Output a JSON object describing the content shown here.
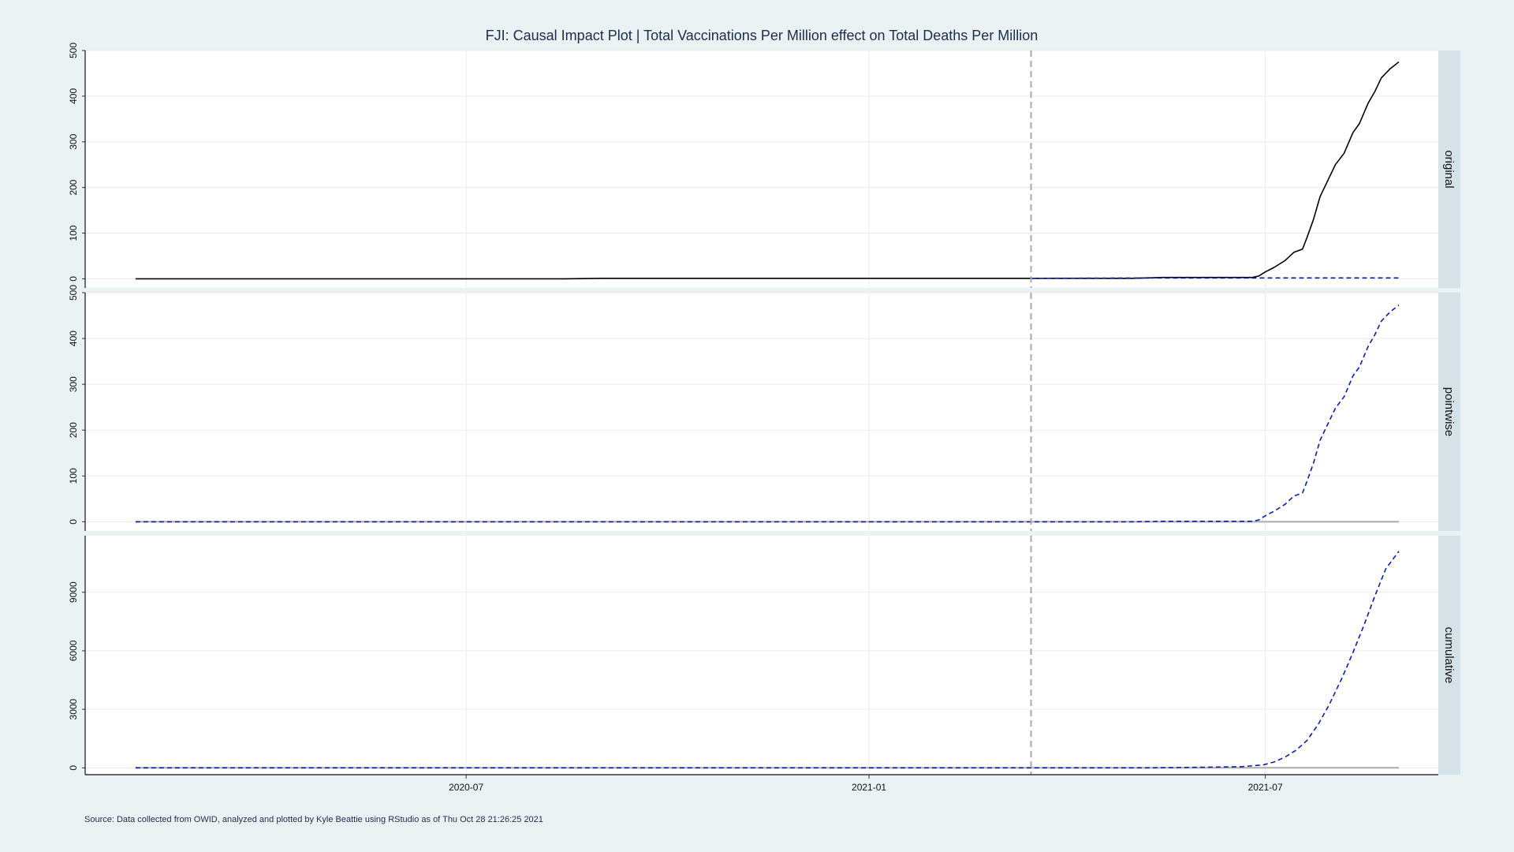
{
  "chart_data": {
    "type": "line",
    "title": "FJI: Causal Impact Plot | Total Vaccinations Per Million effect on Total Deaths Per Million",
    "caption": "Source: Data collected from OWID, analyzed and plotted by Kyle Beattie using RStudio as of Thu Oct 28 21:26:25 2021",
    "x_start": "2020-02-01",
    "x_end": "2021-08-31",
    "xlim": [
      "2020-01-09",
      "2021-09-18"
    ],
    "intervention_date": "2021-03-16",
    "x_ticks": [
      "2020-07",
      "2021-01",
      "2021-07"
    ],
    "x_tick_dates": [
      "2020-07-01",
      "2021-01-01",
      "2021-07-01"
    ],
    "grid": true,
    "colors": {
      "actual": "#000000",
      "predicted": "#0b1ea8",
      "zero_line": "#aaaaaa",
      "intervention": "#a9a9a9",
      "panel_bg": "#ffffff",
      "strip_bg": "#d5e3e8",
      "grid": "#ebebeb"
    },
    "panels": [
      {
        "name": "original",
        "ylim": [
          -20,
          500
        ],
        "y_ticks": [
          0,
          100,
          200,
          300,
          400,
          500
        ],
        "series": [
          {
            "role": "actual",
            "style": "solid",
            "points": [
              [
                "2020-02-01",
                0
              ],
              [
                "2020-08-15",
                0
              ],
              [
                "2020-09-01",
                1
              ],
              [
                "2021-05-01",
                1
              ],
              [
                "2021-05-15",
                3
              ],
              [
                "2021-06-25",
                3
              ],
              [
                "2021-06-28",
                6
              ],
              [
                "2021-07-01",
                15
              ],
              [
                "2021-07-05",
                25
              ],
              [
                "2021-07-10",
                40
              ],
              [
                "2021-07-14",
                58
              ],
              [
                "2021-07-18",
                65
              ],
              [
                "2021-07-20",
                90
              ],
              [
                "2021-07-23",
                130
              ],
              [
                "2021-07-26",
                180
              ],
              [
                "2021-07-29",
                210
              ],
              [
                "2021-08-02",
                250
              ],
              [
                "2021-08-06",
                275
              ],
              [
                "2021-08-10",
                320
              ],
              [
                "2021-08-13",
                340
              ],
              [
                "2021-08-17",
                385
              ],
              [
                "2021-08-20",
                410
              ],
              [
                "2021-08-23",
                440
              ],
              [
                "2021-08-27",
                460
              ],
              [
                "2021-08-31",
                475
              ]
            ]
          },
          {
            "role": "predicted",
            "style": "dashed",
            "points": [
              [
                "2021-03-16",
                1
              ],
              [
                "2021-05-15",
                2
              ],
              [
                "2021-08-31",
                2
              ]
            ]
          }
        ]
      },
      {
        "name": "pointwise",
        "ylim": [
          -20,
          500
        ],
        "y_ticks": [
          0,
          100,
          200,
          300,
          400,
          500
        ],
        "series": [
          {
            "role": "zero",
            "style": "solid",
            "points": [
              [
                "2020-02-01",
                0
              ],
              [
                "2021-08-31",
                0
              ]
            ]
          },
          {
            "role": "predicted",
            "style": "dashed",
            "points": [
              [
                "2020-02-01",
                0
              ],
              [
                "2021-05-01",
                0
              ],
              [
                "2021-05-15",
                1
              ],
              [
                "2021-06-25",
                1
              ],
              [
                "2021-06-28",
                4
              ],
              [
                "2021-07-01",
                13
              ],
              [
                "2021-07-05",
                23
              ],
              [
                "2021-07-10",
                38
              ],
              [
                "2021-07-14",
                56
              ],
              [
                "2021-07-18",
                63
              ],
              [
                "2021-07-20",
                88
              ],
              [
                "2021-07-23",
                128
              ],
              [
                "2021-07-26",
                178
              ],
              [
                "2021-07-29",
                208
              ],
              [
                "2021-08-02",
                248
              ],
              [
                "2021-08-06",
                273
              ],
              [
                "2021-08-10",
                318
              ],
              [
                "2021-08-13",
                338
              ],
              [
                "2021-08-17",
                383
              ],
              [
                "2021-08-20",
                408
              ],
              [
                "2021-08-23",
                438
              ],
              [
                "2021-08-27",
                458
              ],
              [
                "2021-08-31",
                473
              ]
            ]
          }
        ]
      },
      {
        "name": "cumulative",
        "ylim": [
          -350,
          11900
        ],
        "y_ticks": [
          0,
          3000,
          6000,
          9000
        ],
        "series": [
          {
            "role": "zero",
            "style": "solid",
            "points": [
              [
                "2020-02-01",
                0
              ],
              [
                "2021-08-31",
                0
              ]
            ]
          },
          {
            "role": "predicted",
            "style": "dashed",
            "points": [
              [
                "2020-02-01",
                0
              ],
              [
                "2021-05-10",
                0
              ],
              [
                "2021-06-01",
                30
              ],
              [
                "2021-06-20",
                60
              ],
              [
                "2021-06-30",
                150
              ],
              [
                "2021-07-05",
                300
              ],
              [
                "2021-07-10",
                550
              ],
              [
                "2021-07-15",
                900
              ],
              [
                "2021-07-20",
                1400
              ],
              [
                "2021-07-25",
                2200
              ],
              [
                "2021-07-30",
                3200
              ],
              [
                "2021-08-05",
                4600
              ],
              [
                "2021-08-10",
                5900
              ],
              [
                "2021-08-15",
                7300
              ],
              [
                "2021-08-20",
                8800
              ],
              [
                "2021-08-25",
                10200
              ],
              [
                "2021-08-31",
                11100
              ]
            ]
          }
        ]
      }
    ]
  }
}
